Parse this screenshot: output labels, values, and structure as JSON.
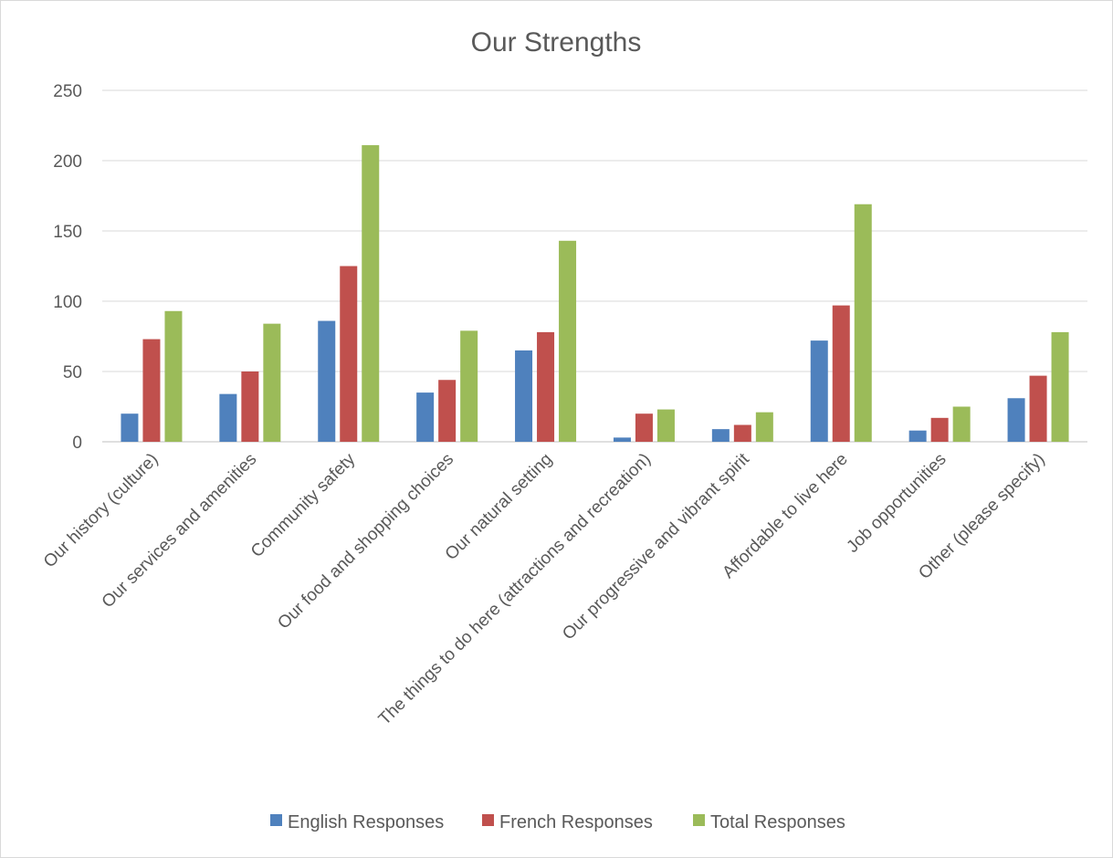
{
  "chart_data": {
    "type": "bar",
    "title": "Our Strengths",
    "xlabel": "",
    "ylabel": "",
    "ylim": [
      0,
      250
    ],
    "yticks": [
      0,
      50,
      100,
      150,
      200,
      250
    ],
    "grid": true,
    "legend_position": "bottom",
    "categories": [
      "Our history (culture)",
      "Our services and amenities",
      "Community safety",
      "Our food and shopping choices",
      "Our natural setting",
      "The things to do here (attractions and recreation)",
      "Our progressive and vibrant spirit",
      "Affordable to live here",
      "Job opportunities",
      "Other (please specify)"
    ],
    "series": [
      {
        "name": "English Responses",
        "color": "#4f81bd",
        "values": [
          20,
          34,
          86,
          35,
          65,
          3,
          9,
          72,
          8,
          31
        ]
      },
      {
        "name": "French Responses",
        "color": "#c0504d",
        "values": [
          73,
          50,
          125,
          44,
          78,
          20,
          12,
          97,
          17,
          47
        ]
      },
      {
        "name": "Total Responses",
        "color": "#9bbb59",
        "values": [
          93,
          84,
          211,
          79,
          143,
          23,
          21,
          169,
          25,
          78
        ]
      }
    ]
  }
}
